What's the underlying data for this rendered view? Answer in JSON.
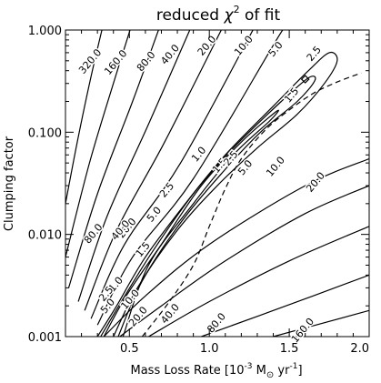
{
  "chart_data": {
    "type": "contour",
    "title": "reduced χ² of fit",
    "title_main": "reduced ",
    "title_symbol": "χ",
    "title_sup": "2",
    "title_tail": " of fit",
    "xlabel": "Mass Loss Rate [10",
    "xlabel_exp": "-3",
    "xlabel_unit": " M",
    "xlabel_sun": "⊙",
    "xlabel_tail": " yr",
    "xlabel_tail_exp": "-1",
    "xlabel_close": "]",
    "ylabel": "Clumping factor",
    "x_scale": "linear",
    "y_scale": "log",
    "xlim": [
      0.1,
      2.0
    ],
    "ylim": [
      0.001,
      1.0
    ],
    "x_ticks": [
      {
        "value": 0.5,
        "label": "0.5"
      },
      {
        "value": 1.0,
        "label": "1.0"
      },
      {
        "value": 1.5,
        "label": "1.5"
      },
      {
        "value": 2.0,
        "label": "2.0"
      }
    ],
    "y_ticks": [
      {
        "value": 0.001,
        "label": "0.001"
      },
      {
        "value": 0.01,
        "label": "0.010"
      },
      {
        "value": 0.1,
        "label": "0.100"
      },
      {
        "value": 1.0,
        "label": "1.000"
      }
    ],
    "contour_levels": [
      "1.0",
      "1.5",
      "2.5",
      "5.0",
      "10.0",
      "20.0",
      "40.0",
      "80.0",
      "160.0",
      "320.0"
    ],
    "contour_labels": [
      {
        "text": "320.0",
        "x": 0.27,
        "y": 0.47
      },
      {
        "text": "160.0",
        "x": 0.43,
        "y": 0.46
      },
      {
        "text": "80.0",
        "x": 0.62,
        "y": 0.47
      },
      {
        "text": "40.0",
        "x": 0.77,
        "y": 0.55
      },
      {
        "text": "20.0",
        "x": 1.0,
        "y": 0.67
      },
      {
        "text": "10.0",
        "x": 1.23,
        "y": 0.67
      },
      {
        "text": "5.0",
        "x": 1.43,
        "y": 0.62
      },
      {
        "text": "2.5",
        "x": 1.67,
        "y": 0.56
      },
      {
        "text": "1.5",
        "x": 1.53,
        "y": 0.22
      },
      {
        "text": "1.0",
        "x": 0.95,
        "y": 0.058
      },
      {
        "text": "1.5",
        "x": 1.08,
        "y": 0.045
      },
      {
        "text": "2.5",
        "x": 1.15,
        "y": 0.053
      },
      {
        "text": "5.0",
        "x": 1.24,
        "y": 0.043
      },
      {
        "text": "10.0",
        "x": 1.43,
        "y": 0.044
      },
      {
        "text": "20.0",
        "x": 1.68,
        "y": 0.031
      },
      {
        "text": "2.5",
        "x": 0.75,
        "y": 0.026
      },
      {
        "text": "5.0",
        "x": 0.67,
        "y": 0.015
      },
      {
        "text": "20.0",
        "x": 0.5,
        "y": 0.011
      },
      {
        "text": "40.0",
        "x": 0.46,
        "y": 0.0105
      },
      {
        "text": "80.0",
        "x": 0.29,
        "y": 0.0097
      },
      {
        "text": "1.5",
        "x": 0.6,
        "y": 0.0068
      },
      {
        "text": "1.0",
        "x": 0.43,
        "y": 0.0031
      },
      {
        "text": "2.5",
        "x": 0.37,
        "y": 0.0025
      },
      {
        "text": "5.0",
        "x": 0.38,
        "y": 0.0019
      },
      {
        "text": "10.0",
        "x": 0.52,
        "y": 0.0022
      },
      {
        "text": "20.0",
        "x": 0.57,
        "y": 0.0015
      },
      {
        "text": "40.0",
        "x": 0.77,
        "y": 0.0016
      },
      {
        "text": "80.0",
        "x": 1.06,
        "y": 0.0013
      },
      {
        "text": "160.0",
        "x": 1.6,
        "y": 0.0011
      }
    ],
    "dashed_curve": [
      {
        "x": 0.58,
        "y": 0.001
      },
      {
        "x": 0.75,
        "y": 0.0022
      },
      {
        "x": 0.9,
        "y": 0.005
      },
      {
        "x": 1.0,
        "y": 0.012
      },
      {
        "x": 1.1,
        "y": 0.028
      },
      {
        "x": 1.2,
        "y": 0.055
      },
      {
        "x": 1.35,
        "y": 0.105
      },
      {
        "x": 1.5,
        "y": 0.165
      },
      {
        "x": 1.65,
        "y": 0.24
      },
      {
        "x": 1.8,
        "y": 0.31
      },
      {
        "x": 1.95,
        "y": 0.38
      }
    ],
    "minimum_marker": {
      "x": 1.6,
      "y": 0.33
    },
    "grid": false,
    "line_color": "#000000"
  }
}
